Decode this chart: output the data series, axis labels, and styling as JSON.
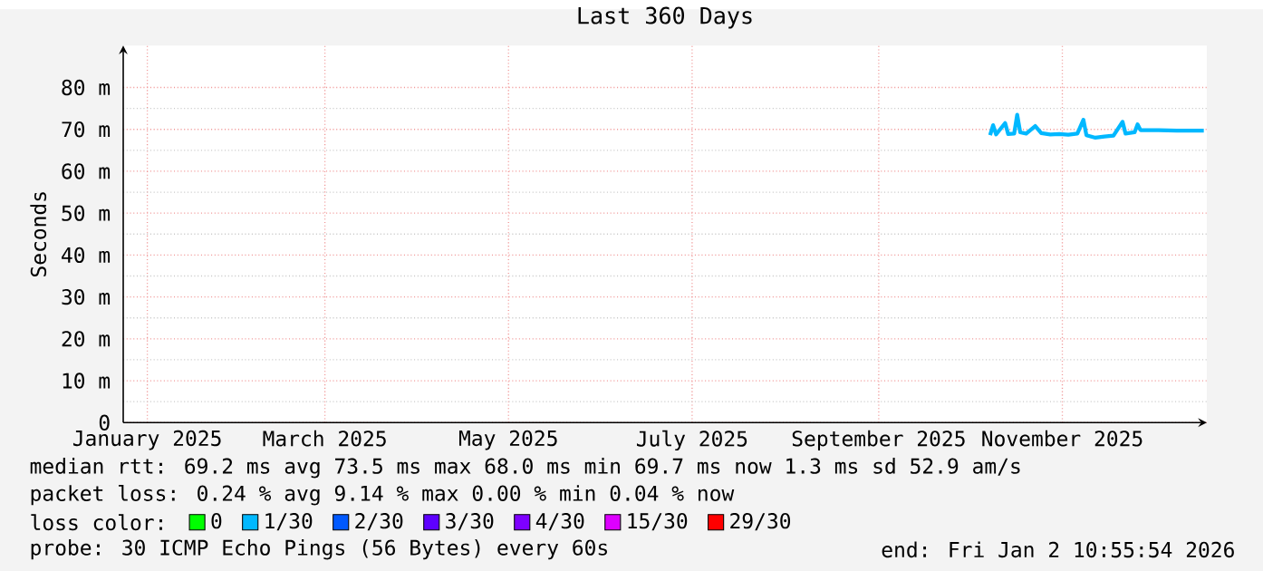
{
  "chart_data": {
    "type": "line",
    "title": "Last 360 Days",
    "ylabel": "Seconds",
    "legend_title": "loss color:",
    "x": [
      "2025-10-22",
      "2025-10-23",
      "2025-10-24",
      "2025-10-27",
      "2025-10-28",
      "2025-10-30",
      "2025-10-31",
      "2025-11-01",
      "2025-11-03",
      "2025-11-06",
      "2025-11-08",
      "2025-11-11",
      "2025-11-14",
      "2025-11-17",
      "2025-11-20",
      "2025-11-22",
      "2025-11-23",
      "2025-11-26",
      "2025-11-29",
      "2025-12-02",
      "2025-12-05",
      "2025-12-06",
      "2025-12-09",
      "2025-12-10",
      "2025-12-11",
      "2025-12-17",
      "2025-12-23",
      "2025-12-29",
      "2026-01-01"
    ],
    "series": [
      {
        "color": "#00b8ff",
        "values": [
          68.6,
          71.0,
          68.8,
          71.5,
          68.9,
          69.0,
          73.5,
          69.3,
          69.0,
          70.8,
          69.1,
          68.8,
          68.9,
          68.7,
          69.0,
          72.3,
          68.6,
          68.0,
          68.3,
          68.5,
          71.8,
          69.0,
          69.3,
          71.2,
          69.8,
          69.8,
          69.7,
          69.7,
          69.7
        ]
      },
      {
        "name": "0",
        "color": "#00ff00",
        "values": [
          null,
          null,
          null,
          null,
          null,
          null,
          null,
          null,
          null,
          null,
          null,
          null,
          null,
          null,
          null,
          null,
          null,
          null,
          null,
          null,
          null,
          null,
          null,
          null,
          null,
          null,
          null,
          null,
          null
        ]
      },
      {
        "name": "1/30",
        "color": "#00b8ff",
        "values": [
          null,
          null,
          null,
          null,
          null,
          null,
          null,
          null,
          null,
          null,
          null,
          null,
          null,
          null,
          null,
          null,
          null,
          null,
          null,
          null,
          null,
          null,
          null,
          null,
          null,
          null,
          null,
          null,
          null
        ]
      },
      {
        "name": "2/30",
        "color": "#0059ff",
        "values": [
          null,
          null,
          null,
          null,
          null,
          null,
          null,
          null,
          null,
          null,
          null,
          null,
          null,
          null,
          null,
          null,
          null,
          null,
          null,
          null,
          null,
          null,
          null,
          null,
          null,
          null,
          null,
          null,
          null
        ]
      },
      {
        "name": "3/30",
        "color": "#5e00ff",
        "values": [
          null,
          null,
          null,
          null,
          null,
          null,
          null,
          null,
          null,
          null,
          null,
          null,
          null,
          null,
          null,
          null,
          null,
          null,
          null,
          null,
          null,
          null,
          null,
          null,
          null,
          null,
          null,
          null,
          null
        ]
      },
      {
        "name": "4/30",
        "color": "#7e00ff",
        "values": [
          null,
          null,
          null,
          null,
          null,
          null,
          null,
          null,
          null,
          null,
          null,
          null,
          null,
          null,
          null,
          null,
          null,
          null,
          null,
          null,
          null,
          null,
          null,
          null,
          null,
          null,
          null,
          null,
          null
        ]
      },
      {
        "name": "15/30",
        "color": "#dd00ff",
        "values": [
          null,
          null,
          null,
          null,
          null,
          null,
          null,
          null,
          null,
          null,
          null,
          null,
          null,
          null,
          null,
          null,
          null,
          null,
          null,
          null,
          null,
          null,
          null,
          null,
          null,
          null,
          null,
          null,
          null
        ]
      },
      {
        "name": "29/30",
        "color": "#ff0000",
        "values": [
          null,
          null,
          null,
          null,
          null,
          null,
          null,
          null,
          null,
          null,
          null,
          null,
          null,
          null,
          null,
          null,
          null,
          null,
          null,
          null,
          null,
          null,
          null,
          null,
          null,
          null,
          null,
          null,
          null
        ]
      }
    ],
    "xlim": [
      "2025-01-07",
      "2026-01-02"
    ],
    "xticks": [
      {
        "value": "2025-01-15",
        "label": "January 2025"
      },
      {
        "value": "2025-03-15",
        "label": "March 2025"
      },
      {
        "value": "2025-05-15",
        "label": "May 2025"
      },
      {
        "value": "2025-07-15",
        "label": "July 2025"
      },
      {
        "value": "2025-09-15",
        "label": "September 2025"
      },
      {
        "value": "2025-11-15",
        "label": "November 2025"
      }
    ],
    "ylim": [
      0,
      90
    ],
    "yticks": [
      0,
      {
        "value": 10,
        "label": "10 m"
      },
      {
        "value": 20,
        "label": "20 m"
      },
      {
        "value": 30,
        "label": "30 m"
      },
      {
        "value": 40,
        "label": "40 m"
      },
      {
        "value": 50,
        "label": "50 m"
      },
      {
        "value": 60,
        "label": "60 m"
      },
      {
        "value": 70,
        "label": "70 m"
      },
      {
        "value": 80,
        "label": "80 m"
      }
    ],
    "grid": true,
    "legend": "bottom",
    "annotations": [
      "median rtt: 69.2 ms avg 73.5 ms max 68.0 ms min 69.7 ms now 1.3 ms sd 52.9 am/s",
      "packet loss: 0.24 % avg 9.14 % max 0.00 % min 0.04 % now",
      "probe: 30 ICMP Echo Pings (56 Bytes) every 60s",
      "end: Fri Jan 2 10:55:54 2026"
    ]
  }
}
